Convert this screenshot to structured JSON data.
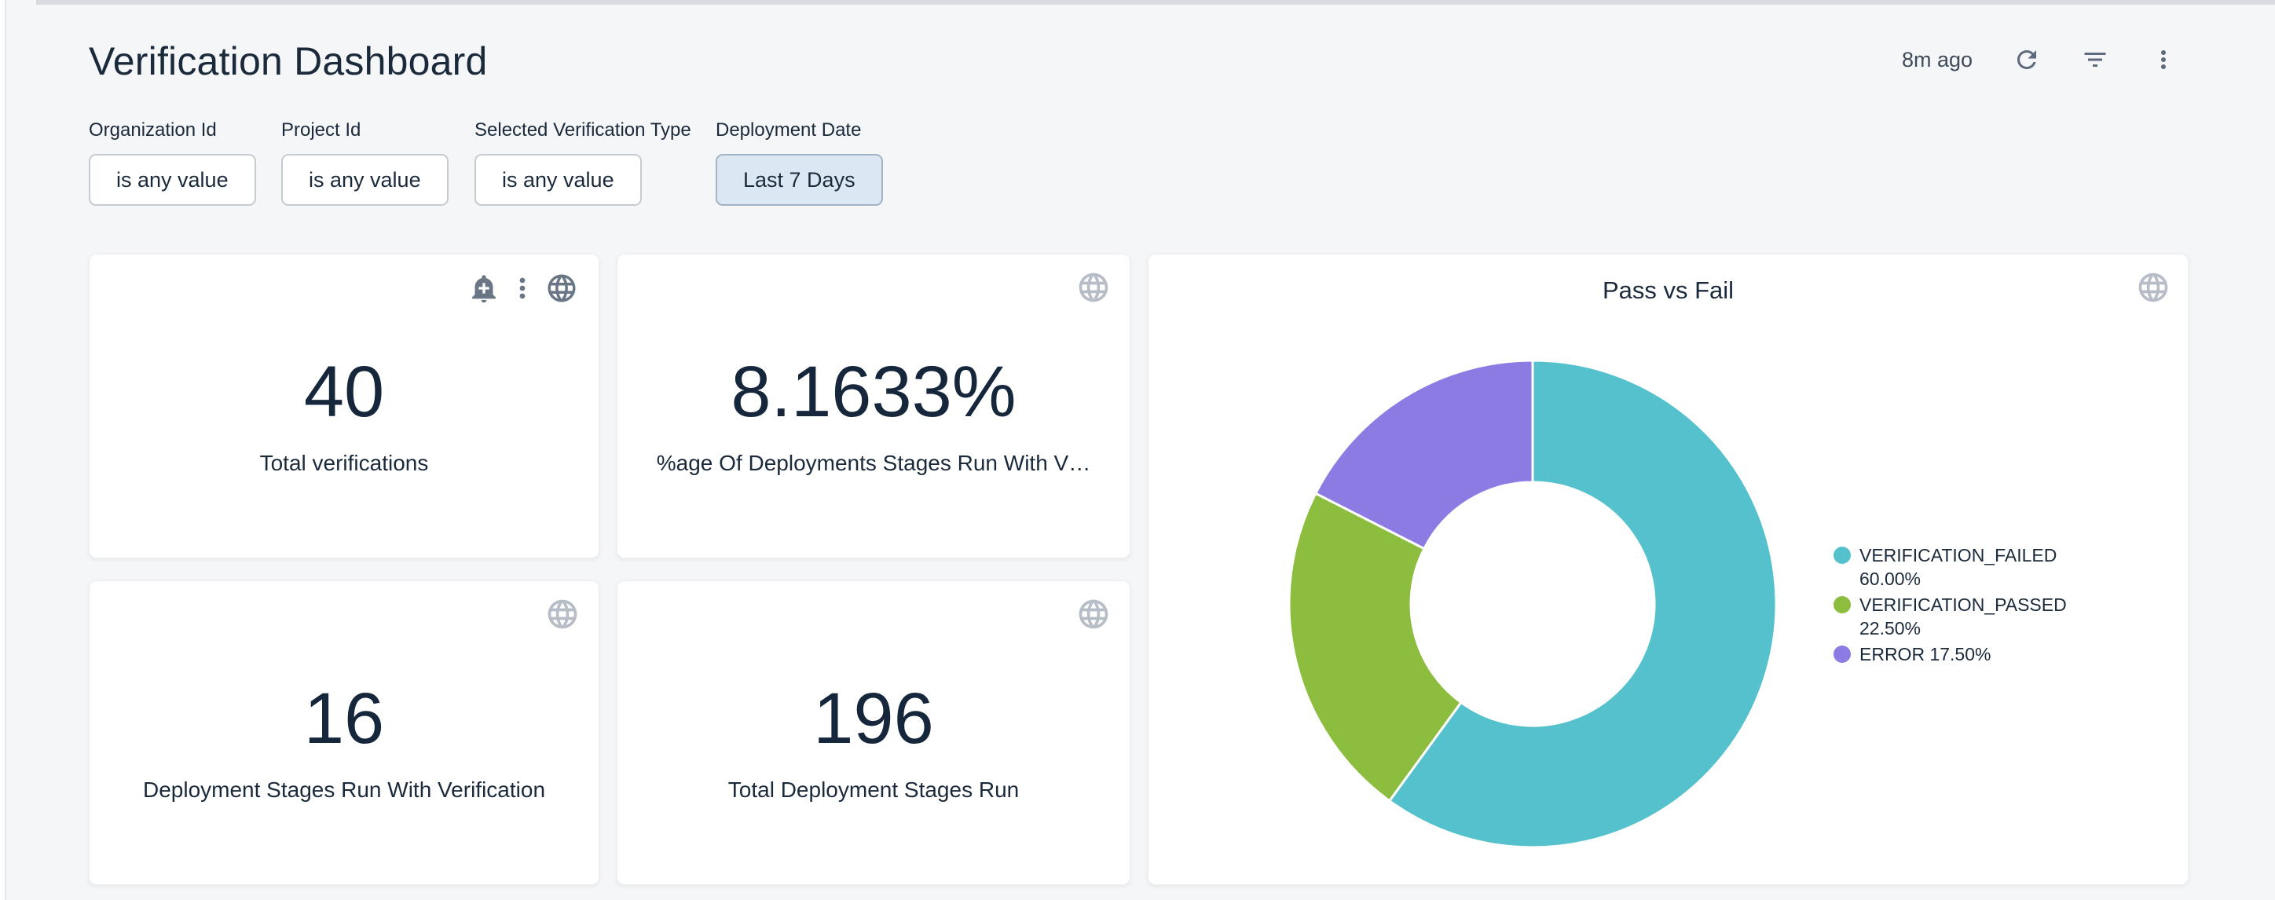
{
  "header": {
    "title": "Verification Dashboard",
    "last_refresh": "8m ago"
  },
  "filters": [
    {
      "label": "Organization Id",
      "value": "is any value"
    },
    {
      "label": "Project Id",
      "value": "is any value"
    },
    {
      "label": "Selected Verification Type",
      "value": "is any value"
    },
    {
      "label": "Deployment Date",
      "value": "Last 7 Days"
    }
  ],
  "tiles": [
    {
      "value": "40",
      "label": "Total verifications"
    },
    {
      "value": "8.1633%",
      "label": "%age Of Deployments Stages Run With V…"
    },
    {
      "value": "16",
      "label": "Deployment Stages Run With Verification"
    },
    {
      "value": "196",
      "label": "Total Deployment Stages Run"
    }
  ],
  "chart_data": {
    "type": "pie",
    "donut": true,
    "title": "Pass vs Fail",
    "legend_position": "right",
    "inner_radius_ratio": 0.5,
    "start_angle": "top",
    "direction": "clockwise",
    "slices": [
      {
        "label": "VERIFICATION_FAILED",
        "pct": 60.0,
        "display_pct": "60.00%",
        "color": "#55C1CD"
      },
      {
        "label": "VERIFICATION_PASSED",
        "pct": 22.5,
        "display_pct": "22.50%",
        "color": "#8CBD3E"
      },
      {
        "label": "ERROR",
        "pct": 17.5,
        "display_pct": "17.50%",
        "color": "#8B7BE3"
      }
    ]
  },
  "colors": {
    "page_background": "#F5F6F8",
    "card_background": "#FFFFFF",
    "text_primary": "#1B2A3B",
    "active_filter_bg": "#DBE7F3",
    "active_filter_border": "#A2B3C3",
    "icon_gray": "#6A7685",
    "icon_faint": "#B7BDC6"
  },
  "icon_names": {
    "header": [
      "refresh-icon",
      "filter-list-icon",
      "kebab-menu-icon"
    ],
    "tile1": [
      "alert-add-bell-icon",
      "kebab-menu-icon",
      "globe-icon"
    ],
    "other_tiles": [
      "globe-icon"
    ]
  }
}
